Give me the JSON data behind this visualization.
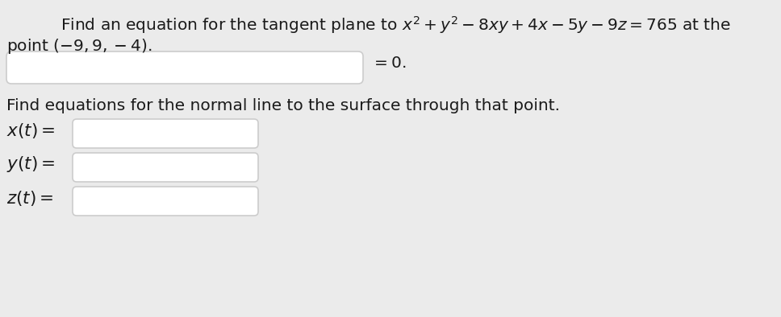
{
  "bg_color": "#ebebeb",
  "title_line1": "Find an equation for the tangent plane to $x^2 + y^2 - 8xy + 4x - 5y - 9z = 765$ at the",
  "title_line2": "point $(-9, 9, -4)$.",
  "eq_zero_label": "$= 0.$",
  "normal_line_text": "Find equations for the normal line to the surface through that point.",
  "xt_label": "$x(t) =$",
  "yt_label": "$y(t) =$",
  "zt_label": "$z(t) =$",
  "box_facecolor": "#ffffff",
  "box_edgecolor": "#cccccc",
  "text_color": "#1a1a1a",
  "font_size": 14.5,
  "label_font_size": 15
}
